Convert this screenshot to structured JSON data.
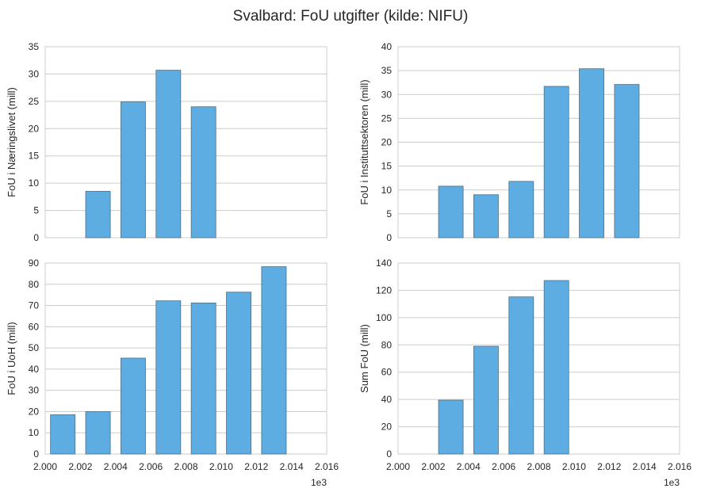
{
  "title": "Svalbard: FoU utgifter (kilde: NIFU)",
  "colors": {
    "bar": "#5dade2",
    "bar_edge": "#4f6f85",
    "grid": "#cccccc"
  },
  "chart_data": [
    {
      "type": "bar",
      "ylabel": "FoU i Næringslivet (mill)",
      "ylim": [
        0,
        35
      ],
      "yticks": [
        "0",
        "5",
        "10",
        "15",
        "20",
        "25",
        "30",
        "35"
      ],
      "xlim": [
        2000,
        2016
      ],
      "xticks": [],
      "x_offset_label": "",
      "grid": true,
      "bars": [
        {
          "x": 2003,
          "value": 8.5
        },
        {
          "x": 2005,
          "value": 24.9
        },
        {
          "x": 2007,
          "value": 30.7
        },
        {
          "x": 2009,
          "value": 24.0
        }
      ]
    },
    {
      "type": "bar",
      "ylabel": "FoU i Instituttsektoren (mill)",
      "ylim": [
        0,
        40
      ],
      "yticks": [
        "0",
        "5",
        "10",
        "15",
        "20",
        "25",
        "30",
        "35",
        "40"
      ],
      "xlim": [
        2000,
        2016
      ],
      "xticks": [],
      "x_offset_label": "",
      "grid": true,
      "bars": [
        {
          "x": 2003,
          "value": 10.8
        },
        {
          "x": 2005,
          "value": 9.0
        },
        {
          "x": 2007,
          "value": 11.8
        },
        {
          "x": 2009,
          "value": 31.7
        },
        {
          "x": 2011,
          "value": 35.4
        },
        {
          "x": 2013,
          "value": 32.1
        }
      ]
    },
    {
      "type": "bar",
      "ylabel": "FoU i UoH (mill)",
      "ylim": [
        0,
        90
      ],
      "yticks": [
        "0",
        "10",
        "20",
        "30",
        "40",
        "50",
        "60",
        "70",
        "80",
        "90"
      ],
      "xlim": [
        2000,
        2016
      ],
      "xticks": [
        "2.000",
        "2.002",
        "2.004",
        "2.006",
        "2.008",
        "2.010",
        "2.012",
        "2.014",
        "2.016"
      ],
      "x_offset_label": "1e3",
      "grid": true,
      "bars": [
        {
          "x": 2001,
          "value": 18.5
        },
        {
          "x": 2003,
          "value": 20.0
        },
        {
          "x": 2005,
          "value": 45.2
        },
        {
          "x": 2007,
          "value": 72.2
        },
        {
          "x": 2009,
          "value": 71.2
        },
        {
          "x": 2011,
          "value": 76.3
        },
        {
          "x": 2013,
          "value": 88.3
        }
      ]
    },
    {
      "type": "bar",
      "ylabel": "Sum FoU (mill)",
      "ylim": [
        0,
        140
      ],
      "yticks": [
        "0",
        "20",
        "40",
        "60",
        "80",
        "100",
        "120",
        "140"
      ],
      "xlim": [
        2000,
        2016
      ],
      "xticks": [
        "2.000",
        "2.002",
        "2.004",
        "2.006",
        "2.008",
        "2.010",
        "2.012",
        "2.014",
        "2.016"
      ],
      "x_offset_label": "1e3",
      "grid": true,
      "bars": [
        {
          "x": 2003,
          "value": 39.5
        },
        {
          "x": 2005,
          "value": 79.0
        },
        {
          "x": 2007,
          "value": 115.2
        },
        {
          "x": 2009,
          "value": 127.2
        }
      ]
    }
  ]
}
